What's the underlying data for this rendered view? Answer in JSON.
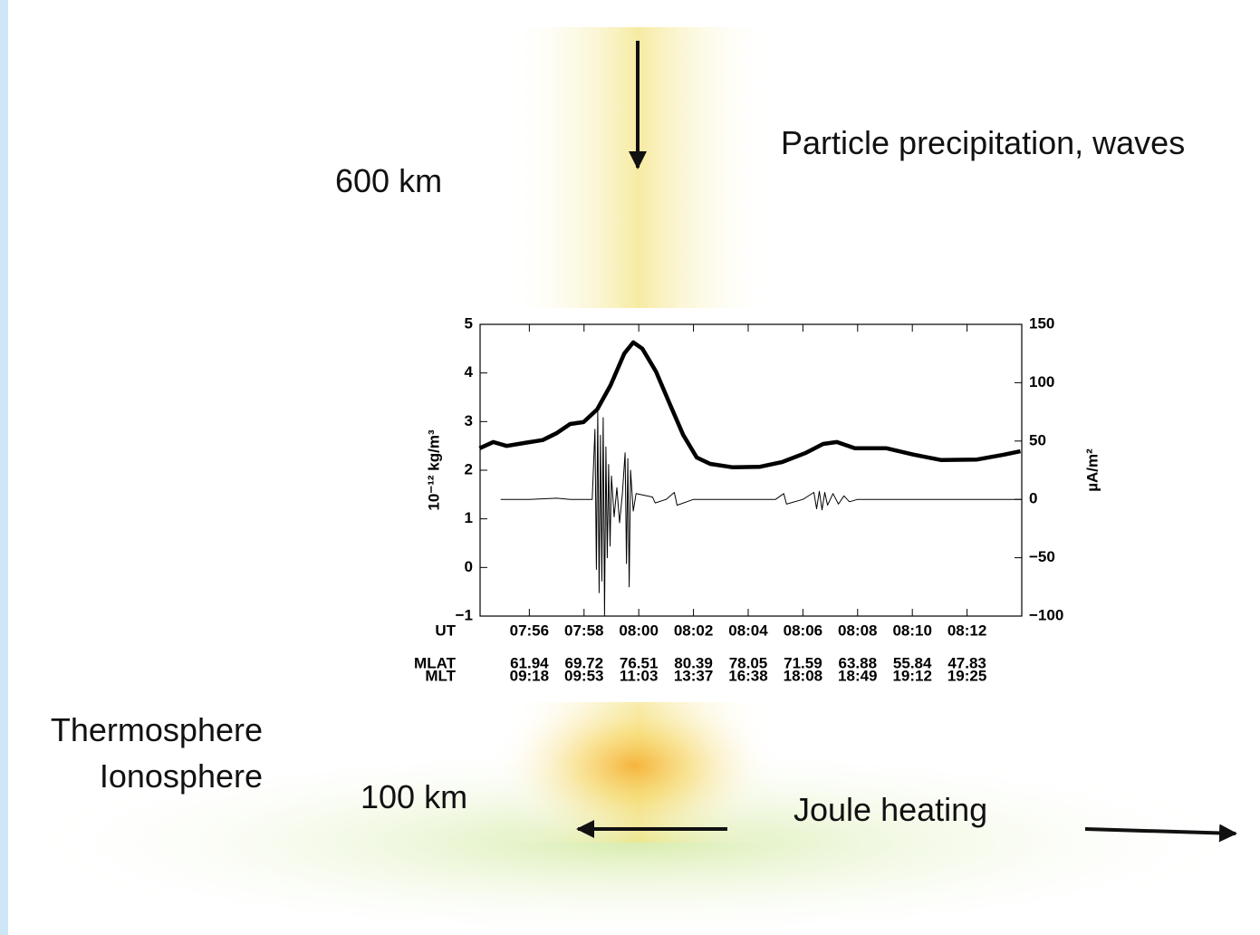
{
  "labels": {
    "top_altitude": "600 km",
    "input": "Particle precipitation, waves",
    "region_1": "Thermosphere",
    "region_2": "Ionosphere",
    "bottom_altitude": "100 km",
    "heating": "Joule heating"
  },
  "chart_data": {
    "type": "line",
    "ylabel": "10⁻¹² kg/m³",
    "y2label": "µA/m²",
    "xlim": [
      474.2,
      494
    ],
    "ylim": [
      -1,
      5
    ],
    "y2lim": [
      -100,
      150
    ],
    "xticks": [
      {
        "value": 476,
        "label": "07:56"
      },
      {
        "value": 478,
        "label": "07:58"
      },
      {
        "value": 480,
        "label": "08:00"
      },
      {
        "value": 482,
        "label": "08:02"
      },
      {
        "value": 484,
        "label": "08:04"
      },
      {
        "value": 486,
        "label": "08:06"
      },
      {
        "value": 488,
        "label": "08:08"
      },
      {
        "value": 490,
        "label": "08:10"
      },
      {
        "value": 492,
        "label": "08:12"
      }
    ],
    "xtick_title": "UT",
    "x_rows": [
      {
        "name": "MLAT",
        "values": [
          61.94,
          69.72,
          76.51,
          80.39,
          78.05,
          71.59,
          63.88,
          55.84,
          47.83
        ]
      },
      {
        "name": "MLT",
        "values": [
          "09:18",
          "09:53",
          "11:03",
          "13:37",
          "16:38",
          "18:08",
          "18:49",
          "19:12",
          "19:25"
        ]
      }
    ],
    "yticks": [
      {
        "value": -1,
        "label": "−1"
      },
      0,
      1,
      2,
      3,
      4,
      5
    ],
    "y2ticks": [
      {
        "value": -100,
        "label": "−100"
      },
      {
        "value": -50,
        "label": "−50"
      },
      0,
      50,
      100,
      150
    ],
    "series": [
      {
        "color": "#000000",
        "width": 4.5,
        "x": [
          474.18,
          474.68,
          475.17,
          475.83,
          476.49,
          476.99,
          477.49,
          477.98,
          478.48,
          478.97,
          479.47,
          479.8,
          480.13,
          480.63,
          481.12,
          481.62,
          482.12,
          482.61,
          483.44,
          484.43,
          485.25,
          486.08,
          486.74,
          487.24,
          487.9,
          489.06,
          490.05,
          491.04,
          492.36,
          493.35,
          493.95
        ],
        "values": [
          2.45,
          2.58,
          2.5,
          2.56,
          2.62,
          2.76,
          2.95,
          2.99,
          3.25,
          3.75,
          4.4,
          4.63,
          4.5,
          4.03,
          3.38,
          2.73,
          2.26,
          2.13,
          2.06,
          2.07,
          2.17,
          2.35,
          2.54,
          2.58,
          2.45,
          2.45,
          2.32,
          2.21,
          2.22,
          2.32,
          2.39
        ]
      },
      {
        "color": "#000000",
        "width": 1,
        "axis": "y2",
        "x": [
          474.95,
          476,
          477,
          477.5,
          478.3,
          478.4,
          478.45,
          478.5,
          478.55,
          478.6,
          478.65,
          478.7,
          478.75,
          478.8,
          478.85,
          478.9,
          478.95,
          479,
          479.1,
          479.2,
          479.3,
          479.4,
          479.5,
          479.55,
          479.6,
          479.65,
          479.7,
          479.8,
          479.9,
          480.5,
          480.6,
          481,
          481.3,
          481.4,
          482,
          483,
          485,
          485.3,
          485.4,
          486,
          486.4,
          486.5,
          486.6,
          486.7,
          486.8,
          486.9,
          487.1,
          487.3,
          487.5,
          487.7,
          488,
          489,
          494
        ],
        "values": [
          0,
          0,
          1,
          0,
          0,
          60,
          -60,
          75,
          -80,
          55,
          -70,
          70,
          -100,
          45,
          -50,
          30,
          -40,
          20,
          -15,
          10,
          -20,
          5,
          40,
          -55,
          35,
          -75,
          25,
          -10,
          5,
          2,
          -3,
          0,
          6,
          -5,
          0,
          0,
          0,
          5,
          -4,
          0,
          6,
          -8,
          7,
          -9,
          6,
          -5,
          5,
          -4,
          3,
          -2,
          0,
          0,
          0
        ]
      }
    ]
  }
}
